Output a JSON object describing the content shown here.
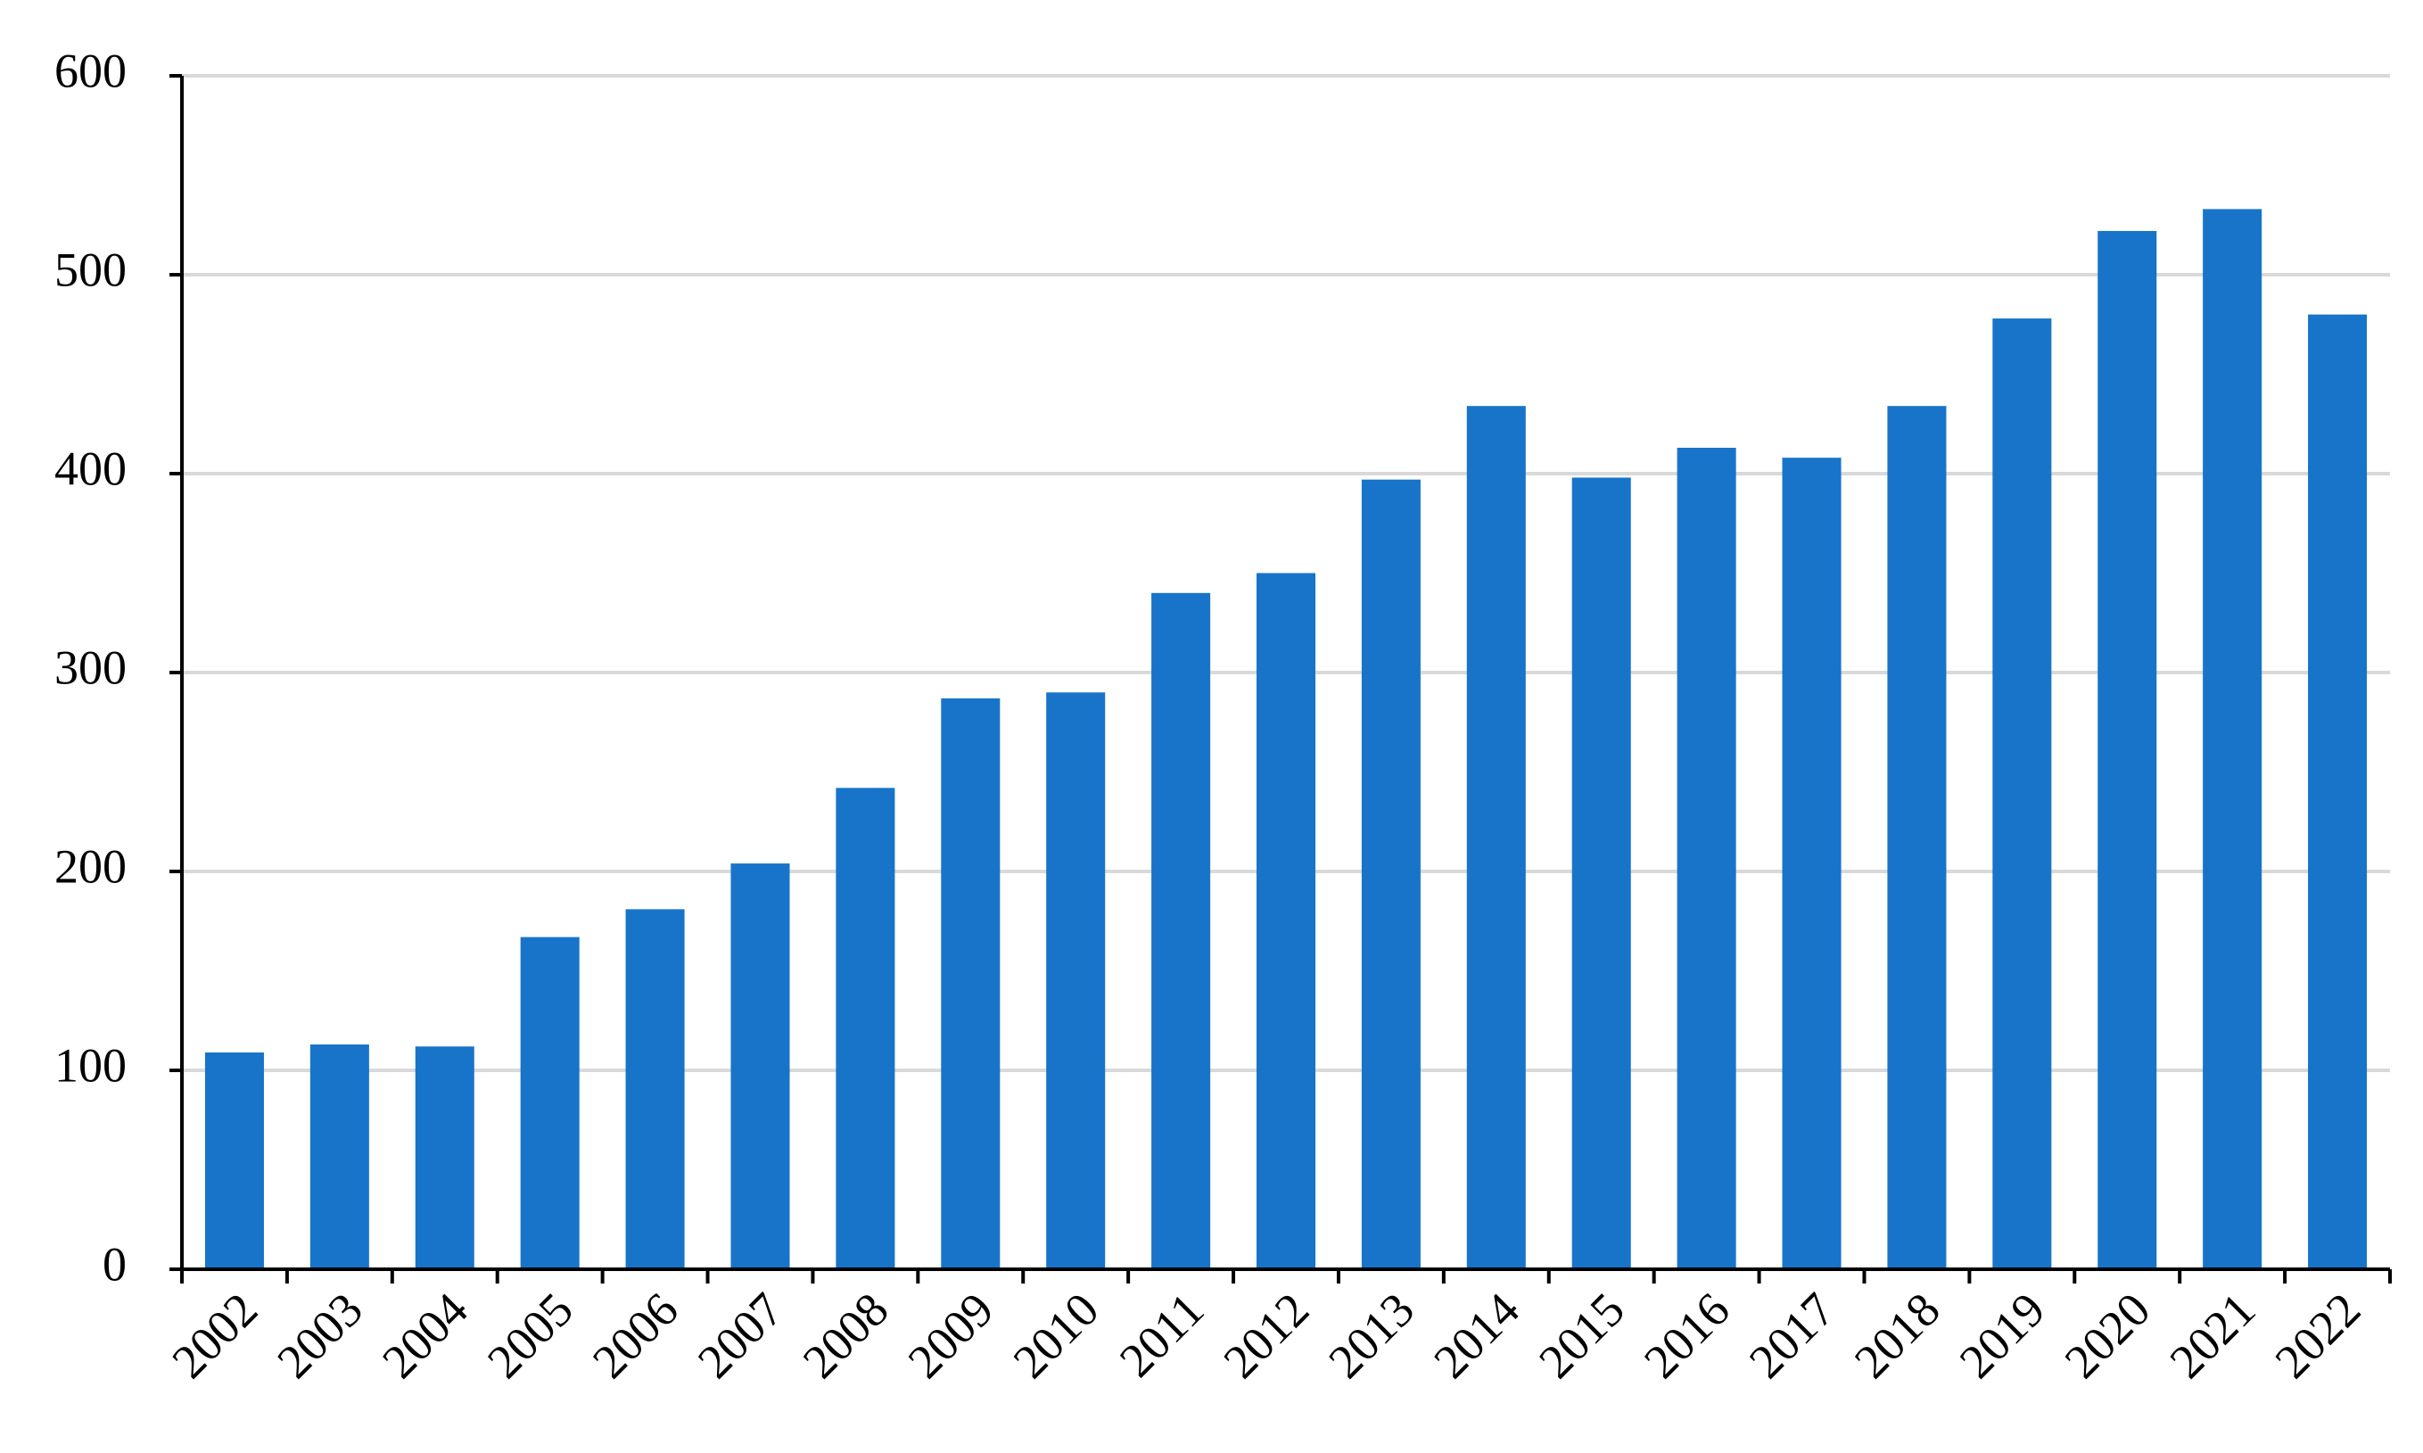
{
  "chart_data": {
    "type": "bar",
    "categories": [
      "2002",
      "2003",
      "2004",
      "2005",
      "2006",
      "2007",
      "2008",
      "2009",
      "2010",
      "2011",
      "2012",
      "2013",
      "2014",
      "2015",
      "2016",
      "2017",
      "2018",
      "2019",
      "2020",
      "2021",
      "2022"
    ],
    "values": [
      109,
      113,
      112,
      167,
      181,
      204,
      242,
      287,
      290,
      340,
      350,
      397,
      434,
      398,
      413,
      408,
      434,
      478,
      522,
      533,
      480
    ],
    "color": "#1874c9",
    "ylim": [
      0,
      600
    ],
    "yticks": [
      0,
      100,
      200,
      300,
      400,
      500,
      600
    ],
    "grid": true
  }
}
